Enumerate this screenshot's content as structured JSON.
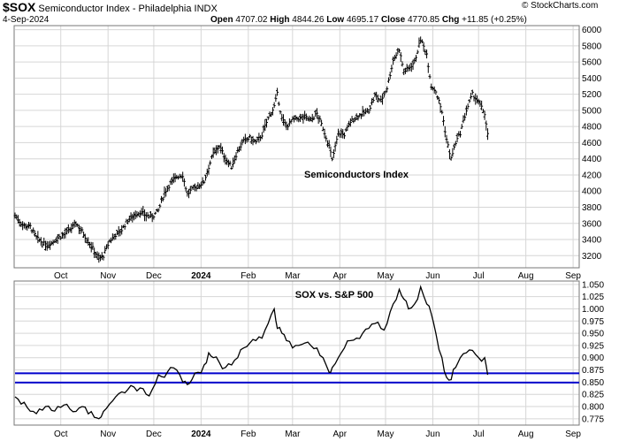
{
  "header": {
    "symbol": "$SOX",
    "name": "Semiconductor Index - Philadelphia",
    "exchange": "INDX",
    "date": "4-Sep-2024",
    "open_label": "Open",
    "open": "4707.02",
    "high_label": "High",
    "high": "4844.26",
    "low_label": "Low",
    "low": "4695.17",
    "close_label": "Close",
    "close": "4770.85",
    "chg_label": "Chg",
    "chg": "+11.85 (+0.25%)",
    "copyright": "© StockCharts.com"
  },
  "colors": {
    "line": "#000000",
    "hline": "#0000cc",
    "grid": "#d6d6d6",
    "border": "#777777"
  },
  "chart_data": [
    {
      "type": "ohlc",
      "title": "Semiconductors Index",
      "ylim": [
        3050,
        6050
      ],
      "yticks": [
        3200,
        3400,
        3600,
        3800,
        4000,
        4200,
        4400,
        4600,
        4800,
        5000,
        5200,
        5400,
        5600,
        5800,
        6000
      ],
      "x_range_days": [
        0,
        344
      ],
      "xticks": [
        {
          "label": "Oct",
          "day": 30,
          "bold": false
        },
        {
          "label": "Nov",
          "day": 61,
          "bold": false
        },
        {
          "label": "Dec",
          "day": 91,
          "bold": false
        },
        {
          "label": "2024",
          "day": 122,
          "bold": true
        },
        {
          "label": "Feb",
          "day": 153,
          "bold": false
        },
        {
          "label": "Mar",
          "day": 182,
          "bold": false
        },
        {
          "label": "Apr",
          "day": 213,
          "bold": false
        },
        {
          "label": "May",
          "day": 243,
          "bold": false
        },
        {
          "label": "Jun",
          "day": 274,
          "bold": false
        },
        {
          "label": "Jul",
          "day": 304,
          "bold": false
        },
        {
          "label": "Aug",
          "day": 335,
          "bold": false
        },
        {
          "label": "Sep",
          "day": 366,
          "bold": false
        }
      ],
      "anchors": [
        [
          0,
          3700
        ],
        [
          5,
          3580
        ],
        [
          10,
          3560
        ],
        [
          14,
          3420
        ],
        [
          20,
          3330
        ],
        [
          24,
          3360
        ],
        [
          28,
          3420
        ],
        [
          32,
          3460
        ],
        [
          36,
          3520
        ],
        [
          40,
          3600
        ],
        [
          44,
          3500
        ],
        [
          48,
          3380
        ],
        [
          52,
          3260
        ],
        [
          55,
          3160
        ],
        [
          58,
          3200
        ],
        [
          62,
          3380
        ],
        [
          66,
          3460
        ],
        [
          70,
          3520
        ],
        [
          74,
          3640
        ],
        [
          78,
          3700
        ],
        [
          82,
          3740
        ],
        [
          86,
          3700
        ],
        [
          90,
          3680
        ],
        [
          94,
          3760
        ],
        [
          98,
          3980
        ],
        [
          102,
          4100
        ],
        [
          106,
          4180
        ],
        [
          110,
          4200
        ],
        [
          113,
          3960
        ],
        [
          116,
          4020
        ],
        [
          120,
          4060
        ],
        [
          124,
          4120
        ],
        [
          127,
          4300
        ],
        [
          130,
          4460
        ],
        [
          134,
          4560
        ],
        [
          138,
          4400
        ],
        [
          142,
          4300
        ],
        [
          146,
          4500
        ],
        [
          150,
          4620
        ],
        [
          154,
          4660
        ],
        [
          158,
          4600
        ],
        [
          162,
          4700
        ],
        [
          166,
          4900
        ],
        [
          170,
          5050
        ],
        [
          172,
          5200
        ],
        [
          175,
          4900
        ],
        [
          178,
          4800
        ],
        [
          182,
          4880
        ],
        [
          186,
          4900
        ],
        [
          190,
          4920
        ],
        [
          194,
          4880
        ],
        [
          198,
          4960
        ],
        [
          202,
          4780
        ],
        [
          206,
          4560
        ],
        [
          208,
          4380
        ],
        [
          212,
          4720
        ],
        [
          216,
          4700
        ],
        [
          220,
          4860
        ],
        [
          224,
          4920
        ],
        [
          228,
          4960
        ],
        [
          232,
          5000
        ],
        [
          236,
          5180
        ],
        [
          240,
          5120
        ],
        [
          244,
          5280
        ],
        [
          248,
          5620
        ],
        [
          252,
          5760
        ],
        [
          255,
          5480
        ],
        [
          258,
          5520
        ],
        [
          262,
          5600
        ],
        [
          266,
          5880
        ],
        [
          270,
          5700
        ],
        [
          273,
          5300
        ],
        [
          276,
          5240
        ],
        [
          280,
          4980
        ],
        [
          283,
          4640
        ],
        [
          286,
          4400
        ],
        [
          289,
          4600
        ],
        [
          292,
          4720
        ],
        [
          296,
          5000
        ],
        [
          300,
          5200
        ],
        [
          304,
          5100
        ],
        [
          308,
          4960
        ],
        [
          310,
          4700
        ]
      ]
    },
    {
      "type": "line",
      "title": "SOX vs. S&P 500",
      "ylim": [
        0.762,
        1.057
      ],
      "yticks": [
        0.775,
        0.8,
        0.825,
        0.85,
        0.875,
        0.9,
        0.925,
        0.95,
        0.975,
        1.0,
        1.025,
        1.05
      ],
      "ytick_labels": [
        "0.775",
        "0.800",
        "0.825",
        "0.850",
        "0.875",
        "0.900",
        "0.925",
        "0.950",
        "0.975",
        "1.000",
        "1.025",
        "1.050"
      ],
      "horizontal_lines": [
        0.849,
        0.868
      ],
      "x": [
        0,
        4,
        8,
        12,
        16,
        20,
        24,
        28,
        32,
        36,
        40,
        44,
        48,
        52,
        55,
        58,
        62,
        66,
        70,
        74,
        78,
        82,
        86,
        90,
        94,
        98,
        102,
        106,
        110,
        113,
        116,
        120,
        124,
        127,
        130,
        134,
        138,
        142,
        146,
        150,
        154,
        158,
        162,
        166,
        170,
        172,
        175,
        178,
        182,
        186,
        190,
        194,
        198,
        202,
        206,
        208,
        212,
        216,
        220,
        224,
        228,
        232,
        236,
        240,
        244,
        248,
        252,
        255,
        258,
        262,
        266,
        270,
        273,
        276,
        280,
        283,
        286,
        289,
        292,
        296,
        300,
        304,
        308,
        310
      ],
      "values": [
        0.82,
        0.805,
        0.798,
        0.79,
        0.795,
        0.8,
        0.792,
        0.8,
        0.803,
        0.795,
        0.79,
        0.8,
        0.785,
        0.778,
        0.775,
        0.79,
        0.805,
        0.82,
        0.83,
        0.835,
        0.84,
        0.838,
        0.825,
        0.835,
        0.865,
        0.86,
        0.88,
        0.875,
        0.85,
        0.845,
        0.855,
        0.87,
        0.885,
        0.91,
        0.9,
        0.89,
        0.88,
        0.885,
        0.9,
        0.92,
        0.93,
        0.935,
        0.94,
        0.97,
        1.0,
        0.96,
        0.95,
        0.935,
        0.92,
        0.925,
        0.93,
        0.925,
        0.92,
        0.9,
        0.87,
        0.88,
        0.9,
        0.92,
        0.935,
        0.94,
        0.95,
        0.96,
        0.97,
        0.96,
        0.97,
        1.01,
        1.04,
        1.02,
        1.0,
        1.01,
        1.045,
        1.01,
        0.99,
        0.95,
        0.9,
        0.86,
        0.855,
        0.88,
        0.9,
        0.91,
        0.915,
        0.9,
        0.9,
        0.865
      ]
    }
  ]
}
